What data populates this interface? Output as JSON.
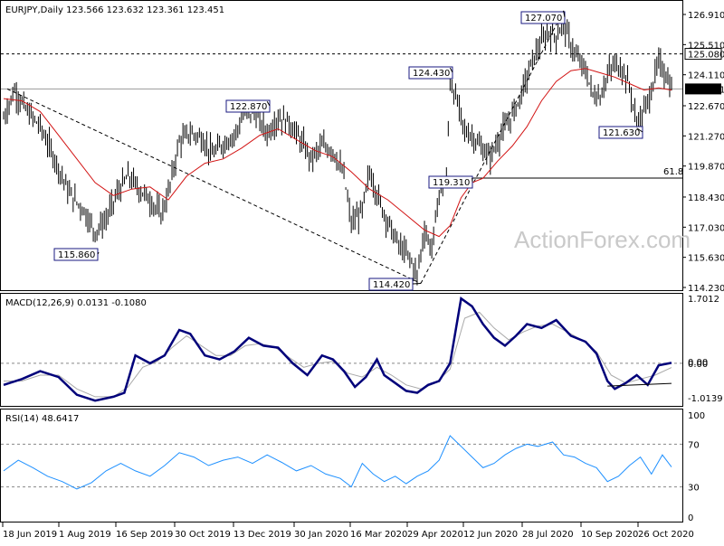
{
  "chart_data": [
    {
      "type": "candlestick",
      "header": "EURJPY,Daily  123.566 123.632 123.361 123.451",
      "ylim": [
        114.23,
        127.33
      ],
      "y_ticks": [
        "126.910",
        "125.510",
        "124.110",
        "122.670",
        "121.270",
        "119.870",
        "118.430",
        "117.030",
        "115.630",
        "114.230"
      ],
      "last_price": "123.451",
      "level_line": "125.080",
      "fib_label": "61.8",
      "fib_level": 119.31,
      "annotations": [
        {
          "label": "115.860",
          "value": 115.86
        },
        {
          "label": "122.870",
          "value": 122.87
        },
        {
          "label": "114.420",
          "value": 114.42
        },
        {
          "label": "124.430",
          "value": 124.43
        },
        {
          "label": "119.310",
          "value": 119.31
        },
        {
          "label": "127.070",
          "value": 127.07
        },
        {
          "label": "121.630",
          "value": 121.63
        }
      ],
      "x_labels": [
        "18 Jun 2019",
        "1 Aug 2019",
        "16 Sep 2019",
        "30 Oct 2019",
        "13 Dec 2019",
        "30 Jan 2020",
        "16 Mar 2020",
        "29 Apr 2020",
        "12 Jun 2020",
        "28 Jul 2020",
        "10 Sep 2020",
        "26 Oct 2020"
      ],
      "close_path": [
        [
          0,
          122.1
        ],
        [
          6,
          123.4
        ],
        [
          12,
          122.5
        ],
        [
          20,
          121.7
        ],
        [
          28,
          120.2
        ],
        [
          36,
          118.6
        ],
        [
          44,
          117.8
        ],
        [
          50,
          116.8
        ],
        [
          56,
          117.4
        ],
        [
          62,
          118.6
        ],
        [
          68,
          119.4
        ],
        [
          74,
          118.8
        ],
        [
          80,
          118.3
        ],
        [
          86,
          117.6
        ],
        [
          90,
          118.6
        ],
        [
          96,
          121.0
        ],
        [
          102,
          121.4
        ],
        [
          108,
          121.2
        ],
        [
          114,
          120.4
        ],
        [
          120,
          120.9
        ],
        [
          126,
          121.3
        ],
        [
          132,
          122.3
        ],
        [
          138,
          122.3
        ],
        [
          144,
          121.4
        ],
        [
          150,
          122.1
        ],
        [
          156,
          121.9
        ],
        [
          162,
          121.1
        ],
        [
          168,
          120.2
        ],
        [
          174,
          120.8
        ],
        [
          180,
          120.6
        ],
        [
          186,
          119.4
        ],
        [
          190,
          117.2
        ],
        [
          196,
          117.8
        ],
        [
          200,
          119.6
        ],
        [
          206,
          118.1
        ],
        [
          212,
          116.9
        ],
        [
          216,
          116.2
        ],
        [
          222,
          115.6
        ],
        [
          226,
          114.8
        ],
        [
          230,
          116.9
        ],
        [
          234,
          116.0
        ],
        [
          238,
          118.6
        ],
        [
          242,
          119.3
        ],
        [
          244,
          123.8
        ],
        [
          248,
          122.8
        ],
        [
          252,
          121.5
        ],
        [
          256,
          121.3
        ],
        [
          262,
          120.6
        ],
        [
          266,
          120.3
        ],
        [
          272,
          121.4
        ],
        [
          276,
          121.9
        ],
        [
          282,
          123.0
        ],
        [
          286,
          124.0
        ],
        [
          290,
          125.0
        ],
        [
          294,
          125.6
        ],
        [
          298,
          126.1
        ],
        [
          302,
          125.9
        ],
        [
          306,
          126.5
        ],
        [
          310,
          125.5
        ],
        [
          314,
          124.8
        ],
        [
          318,
          124.3
        ],
        [
          322,
          123.2
        ],
        [
          326,
          123.1
        ],
        [
          330,
          124.1
        ],
        [
          334,
          124.6
        ],
        [
          338,
          124.4
        ],
        [
          342,
          123.6
        ],
        [
          346,
          121.8
        ],
        [
          350,
          122.4
        ],
        [
          354,
          123.4
        ],
        [
          358,
          124.7
        ],
        [
          362,
          124.1
        ],
        [
          365,
          123.45
        ]
      ],
      "ma_path": [
        [
          0,
          123.0
        ],
        [
          10,
          122.9
        ],
        [
          20,
          122.4
        ],
        [
          30,
          121.3
        ],
        [
          40,
          120.2
        ],
        [
          50,
          119.1
        ],
        [
          60,
          118.5
        ],
        [
          70,
          118.8
        ],
        [
          80,
          118.9
        ],
        [
          90,
          118.3
        ],
        [
          100,
          119.4
        ],
        [
          110,
          120.0
        ],
        [
          120,
          120.2
        ],
        [
          130,
          120.7
        ],
        [
          140,
          121.3
        ],
        [
          150,
          121.6
        ],
        [
          160,
          121.1
        ],
        [
          170,
          120.6
        ],
        [
          180,
          120.3
        ],
        [
          190,
          119.6
        ],
        [
          200,
          118.8
        ],
        [
          210,
          118.3
        ],
        [
          220,
          117.6
        ],
        [
          230,
          116.9
        ],
        [
          238,
          116.6
        ],
        [
          244,
          117.1
        ],
        [
          250,
          118.4
        ],
        [
          256,
          119.1
        ],
        [
          262,
          119.3
        ],
        [
          270,
          120.1
        ],
        [
          278,
          120.8
        ],
        [
          286,
          121.7
        ],
        [
          294,
          122.9
        ],
        [
          302,
          123.8
        ],
        [
          310,
          124.3
        ],
        [
          318,
          124.4
        ],
        [
          326,
          124.2
        ],
        [
          334,
          124.0
        ],
        [
          342,
          123.7
        ],
        [
          350,
          123.4
        ],
        [
          358,
          123.5
        ],
        [
          365,
          123.4
        ]
      ]
    },
    {
      "type": "line",
      "header": "MACD(12,26,9) 0.0131 -0.1080",
      "ylim": [
        -1.0139,
        1.7012
      ],
      "y_ticks": [
        "1.7012",
        "0.00",
        "-1.0139"
      ],
      "zero_labels": [
        "0.00",
        "0.00"
      ],
      "macd_path": [
        [
          0,
          -0.55
        ],
        [
          10,
          -0.4
        ],
        [
          20,
          -0.2
        ],
        [
          30,
          -0.35
        ],
        [
          40,
          -0.8
        ],
        [
          50,
          -0.95
        ],
        [
          60,
          -0.85
        ],
        [
          66,
          -0.75
        ],
        [
          72,
          0.2
        ],
        [
          80,
          0.0
        ],
        [
          88,
          0.2
        ],
        [
          96,
          0.85
        ],
        [
          102,
          0.75
        ],
        [
          110,
          0.2
        ],
        [
          118,
          0.1
        ],
        [
          126,
          0.3
        ],
        [
          134,
          0.65
        ],
        [
          142,
          0.45
        ],
        [
          150,
          0.4
        ],
        [
          158,
          0.0
        ],
        [
          166,
          -0.3
        ],
        [
          174,
          0.2
        ],
        [
          180,
          0.1
        ],
        [
          186,
          -0.2
        ],
        [
          192,
          -0.6
        ],
        [
          198,
          -0.35
        ],
        [
          204,
          0.1
        ],
        [
          208,
          -0.3
        ],
        [
          214,
          -0.5
        ],
        [
          220,
          -0.7
        ],
        [
          226,
          -0.75
        ],
        [
          232,
          -0.55
        ],
        [
          238,
          -0.45
        ],
        [
          244,
          0.0
        ],
        [
          250,
          1.65
        ],
        [
          256,
          1.45
        ],
        [
          262,
          1.0
        ],
        [
          268,
          0.65
        ],
        [
          274,
          0.45
        ],
        [
          280,
          0.7
        ],
        [
          286,
          1.0
        ],
        [
          294,
          0.9
        ],
        [
          302,
          1.1
        ],
        [
          310,
          0.7
        ],
        [
          318,
          0.55
        ],
        [
          324,
          0.25
        ],
        [
          330,
          -0.45
        ],
        [
          334,
          -0.65
        ],
        [
          340,
          -0.5
        ],
        [
          346,
          -0.3
        ],
        [
          352,
          -0.55
        ],
        [
          358,
          -0.05
        ],
        [
          365,
          0.0131
        ]
      ],
      "signal_path": [
        [
          0,
          -0.45
        ],
        [
          10,
          -0.45
        ],
        [
          20,
          -0.3
        ],
        [
          30,
          -0.3
        ],
        [
          40,
          -0.65
        ],
        [
          50,
          -0.85
        ],
        [
          60,
          -0.85
        ],
        [
          68,
          -0.6
        ],
        [
          76,
          -0.1
        ],
        [
          84,
          0.05
        ],
        [
          92,
          0.4
        ],
        [
          100,
          0.7
        ],
        [
          108,
          0.45
        ],
        [
          116,
          0.2
        ],
        [
          124,
          0.2
        ],
        [
          132,
          0.45
        ],
        [
          140,
          0.5
        ],
        [
          148,
          0.42
        ],
        [
          156,
          0.15
        ],
        [
          164,
          -0.1
        ],
        [
          172,
          0.0
        ],
        [
          180,
          0.05
        ],
        [
          188,
          -0.25
        ],
        [
          196,
          -0.35
        ],
        [
          204,
          -0.1
        ],
        [
          212,
          -0.3
        ],
        [
          220,
          -0.55
        ],
        [
          228,
          -0.65
        ],
        [
          236,
          -0.5
        ],
        [
          244,
          -0.15
        ],
        [
          252,
          1.15
        ],
        [
          260,
          1.3
        ],
        [
          268,
          0.9
        ],
        [
          276,
          0.6
        ],
        [
          284,
          0.8
        ],
        [
          292,
          0.95
        ],
        [
          300,
          1.0
        ],
        [
          308,
          0.8
        ],
        [
          316,
          0.6
        ],
        [
          324,
          0.3
        ],
        [
          332,
          -0.3
        ],
        [
          340,
          -0.5
        ],
        [
          348,
          -0.4
        ],
        [
          356,
          -0.3
        ],
        [
          365,
          -0.108
        ]
      ],
      "trend_line": [
        [
          330,
          -0.58
        ],
        [
          365,
          -0.51
        ]
      ]
    },
    {
      "type": "line",
      "header": "RSI(14) 48.6417",
      "ylim": [
        0,
        100
      ],
      "y_ticks": [
        "100",
        "70",
        "30",
        "0"
      ],
      "rsi_path": [
        [
          0,
          45
        ],
        [
          8,
          55
        ],
        [
          16,
          48
        ],
        [
          24,
          40
        ],
        [
          32,
          35
        ],
        [
          40,
          28
        ],
        [
          48,
          34
        ],
        [
          56,
          45
        ],
        [
          64,
          52
        ],
        [
          72,
          45
        ],
        [
          80,
          40
        ],
        [
          88,
          50
        ],
        [
          96,
          62
        ],
        [
          104,
          58
        ],
        [
          112,
          50
        ],
        [
          120,
          55
        ],
        [
          128,
          58
        ],
        [
          136,
          52
        ],
        [
          144,
          60
        ],
        [
          152,
          53
        ],
        [
          160,
          45
        ],
        [
          168,
          50
        ],
        [
          176,
          42
        ],
        [
          184,
          38
        ],
        [
          190,
          30
        ],
        [
          196,
          52
        ],
        [
          202,
          42
        ],
        [
          208,
          35
        ],
        [
          214,
          40
        ],
        [
          220,
          33
        ],
        [
          226,
          40
        ],
        [
          232,
          45
        ],
        [
          238,
          55
        ],
        [
          244,
          78
        ],
        [
          250,
          68
        ],
        [
          256,
          58
        ],
        [
          262,
          48
        ],
        [
          268,
          52
        ],
        [
          274,
          60
        ],
        [
          280,
          66
        ],
        [
          286,
          70
        ],
        [
          292,
          68
        ],
        [
          300,
          72
        ],
        [
          306,
          60
        ],
        [
          312,
          58
        ],
        [
          318,
          52
        ],
        [
          324,
          48
        ],
        [
          330,
          35
        ],
        [
          336,
          40
        ],
        [
          342,
          50
        ],
        [
          348,
          58
        ],
        [
          354,
          42
        ],
        [
          360,
          60
        ],
        [
          365,
          48.64
        ]
      ]
    }
  ],
  "watermark": "ActionForex.com"
}
